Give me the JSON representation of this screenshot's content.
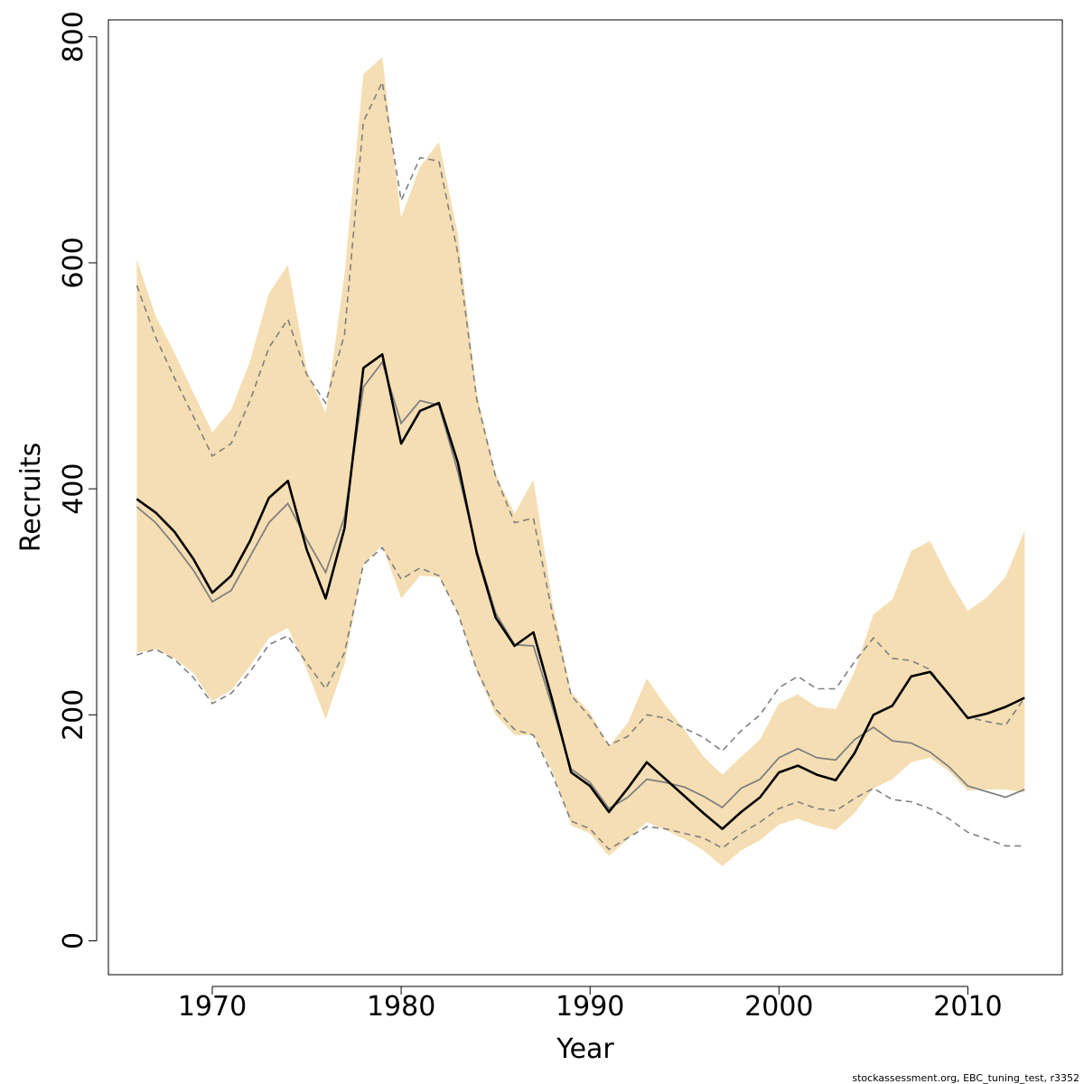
{
  "chart_data": {
    "type": "line",
    "xlabel": "Year",
    "ylabel": "Recruits",
    "xlim": [
      1964.5,
      2015
    ],
    "ylim": [
      -30,
      815
    ],
    "x_ticks": [
      1970,
      1980,
      1990,
      2000,
      2010
    ],
    "y_ticks": [
      0,
      200,
      400,
      600,
      800
    ],
    "caption": "stockassessment.org, EBC_tuning_test, r3352",
    "colors": {
      "band": "#F5DEB3",
      "estimate": "#000000",
      "previous": "#808080",
      "previous_ci": "#808080"
    },
    "x": [
      1966,
      1967,
      1968,
      1969,
      1970,
      1971,
      1972,
      1973,
      1974,
      1975,
      1976,
      1977,
      1978,
      1979,
      1980,
      1981,
      1982,
      1983,
      1984,
      1985,
      1986,
      1987,
      1988,
      1989,
      1990,
      1991,
      1992,
      1993,
      1994,
      1995,
      1996,
      1997,
      1998,
      1999,
      2000,
      2001,
      2002,
      2003,
      2004,
      2005,
      2006,
      2007,
      2008,
      2009,
      2010,
      2011,
      2012,
      2013
    ],
    "band": {
      "upper": [
        603,
        553,
        520,
        485,
        450,
        470,
        513,
        573,
        598,
        505,
        467,
        590,
        767,
        782,
        640,
        685,
        707,
        625,
        485,
        413,
        378,
        408,
        300,
        220,
        202,
        172,
        193,
        232,
        208,
        187,
        163,
        147,
        163,
        178,
        210,
        218,
        207,
        205,
        238,
        289,
        302,
        345,
        354,
        320,
        292,
        304,
        322,
        363
      ],
      "lower": [
        255,
        258,
        250,
        237,
        212,
        222,
        243,
        268,
        277,
        240,
        196,
        245,
        333,
        350,
        303,
        323,
        322,
        290,
        238,
        200,
        182,
        182,
        150,
        102,
        95,
        75,
        90,
        105,
        98,
        90,
        80,
        66,
        80,
        89,
        103,
        108,
        102,
        98,
        113,
        135,
        143,
        158,
        162,
        150,
        133,
        134,
        134,
        131
      ]
    },
    "series": [
      {
        "name": "",
        "values": [
          391,
          379,
          362,
          338,
          308,
          323,
          354,
          392,
          407,
          346,
          303,
          365,
          507,
          519,
          440,
          469,
          476,
          423,
          343,
          286,
          261,
          273,
          213,
          149,
          137,
          114,
          135,
          158,
          143,
          128,
          113,
          99,
          114,
          127,
          149,
          155,
          147,
          142,
          166,
          200,
          208,
          234,
          238,
          218,
          197,
          201,
          207,
          215
        ]
      },
      {
        "name": "",
        "values": [
          384,
          370,
          350,
          328,
          300,
          310,
          340,
          370,
          387,
          355,
          326,
          375,
          490,
          512,
          458,
          478,
          474,
          415,
          345,
          290,
          262,
          261,
          207,
          152,
          140,
          117,
          127,
          143,
          140,
          136,
          128,
          118,
          135,
          143,
          162,
          170,
          162,
          160,
          178,
          189,
          177,
          175,
          167,
          154,
          137,
          132,
          127,
          134
        ]
      }
    ],
    "previous_ci": {
      "upper": [
        580,
        534,
        498,
        464,
        429,
        440,
        478,
        525,
        550,
        501,
        476,
        537,
        725,
        760,
        655,
        693,
        690,
        608,
        479,
        411,
        370,
        374,
        290,
        217,
        198,
        173,
        181,
        200,
        197,
        188,
        180,
        168,
        186,
        200,
        224,
        234,
        223,
        223,
        247,
        268,
        250,
        248,
        240,
        217,
        198,
        194,
        191,
        215
      ],
      "lower": [
        253,
        258,
        249,
        233,
        210,
        219,
        238,
        262,
        270,
        246,
        223,
        255,
        333,
        348,
        320,
        330,
        323,
        290,
        240,
        205,
        187,
        182,
        147,
        106,
        99,
        81,
        91,
        101,
        99,
        95,
        91,
        82,
        95,
        105,
        117,
        123,
        117,
        115,
        126,
        135,
        125,
        123,
        117,
        108,
        96,
        90,
        84,
        84
      ]
    }
  }
}
